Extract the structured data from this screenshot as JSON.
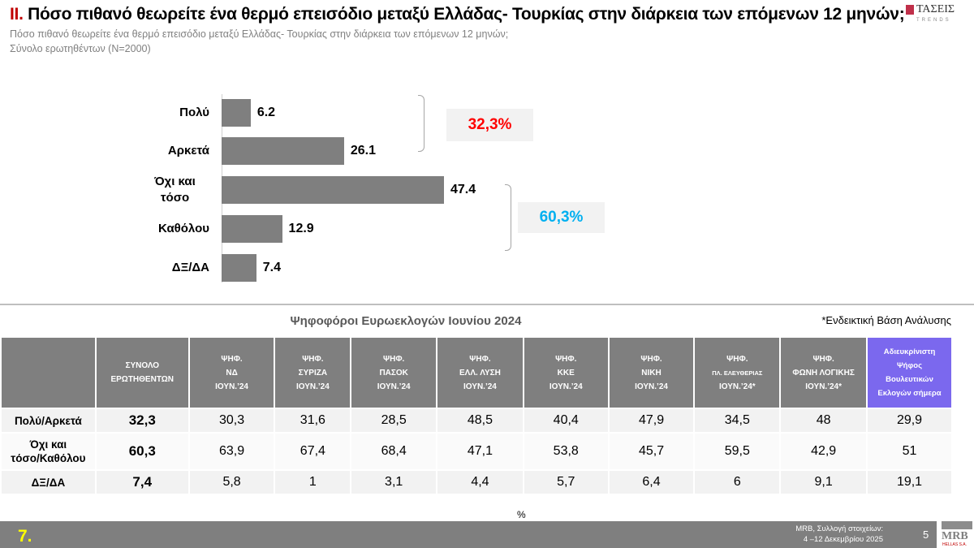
{
  "header": {
    "title_number": "ΙΙ.",
    "title": "Πόσο πιθανό θεωρείτε ένα θερμό επεισόδιο μεταξύ Ελλάδας- Τουρκίας στην διάρκεια των επόμενων 12 μηνών;",
    "subtitle": "Πόσο πιθανό θεωρείτε ένα θερμό επεισόδιο μεταξύ Ελλάδας- Τουρκίας στην διάρκεια των επόμενων 12 μηνών;",
    "base": "Σύνολο ερωτηθέντων (N=2000)",
    "logo_text": "ΤΑΣΕΙΣ",
    "logo_sub": "TRENDS"
  },
  "chart_data": {
    "type": "bar",
    "orientation": "horizontal",
    "categories": [
      "Πολύ",
      "Αρκετά",
      "Όχι και τόσο",
      "Καθόλου",
      "ΔΞ/ΔΑ"
    ],
    "values": [
      6.2,
      26.1,
      47.4,
      12.9,
      7.4
    ],
    "value_labels": [
      "6.2",
      "26.1",
      "47.4",
      "12.9",
      "7.4"
    ],
    "bar_color": "#7f7f7f",
    "groups": [
      {
        "label": "32,3%",
        "color": "#ff0000",
        "members": [
          "Πολύ",
          "Αρκετά"
        ]
      },
      {
        "label": "60,3%",
        "color": "#00b0f0",
        "members": [
          "Όχι και τόσο",
          "Καθόλου"
        ]
      }
    ]
  },
  "table": {
    "title": "Ψηφοφόροι Ευρωεκλογών Ιουνίου 2024",
    "note": "*Ενδεικτική Βάση Ανάλυσης",
    "headers": [
      [
        "ΣΥΝΟΛΟ",
        "ΕΡΩΤΗΘΕΝΤΩΝ"
      ],
      [
        "ΨΗΦ.",
        "ΝΔ",
        "ΙΟΥΝ.’24"
      ],
      [
        "ΨΗΦ.",
        "ΣΥΡΙΖΑ",
        "ΙΟΥΝ.’24"
      ],
      [
        "ΨΗΦ.",
        "ΠΑΣΟΚ",
        "ΙΟΥΝ.’24"
      ],
      [
        "ΨΗΦ.",
        "ΕΛΛ. ΛΥΣΗ",
        "ΙΟΥΝ.’24"
      ],
      [
        "ΨΗΦ.",
        "ΚΚΕ",
        "ΙΟΥΝ.’24"
      ],
      [
        "ΨΗΦ.",
        "ΝΙΚΗ",
        "ΙΟΥΝ.’24"
      ],
      [
        "ΨΗΦ.",
        "ΠΛ. ΕΛΕΥΘΕΡΙΑΣ",
        "ΙΟΥΝ.’24*"
      ],
      [
        "ΨΗΦ.",
        "ΦΩΝΗ ΛΟΓΙΚΗΣ",
        "ΙΟΥΝ.’24*"
      ],
      [
        "Αδιευκρίνιστη",
        "Ψήφος",
        "Βουλευτικών",
        "Εκλογών σήμερα"
      ]
    ],
    "highlight_color": "#7b68ee",
    "rows": [
      {
        "label": "Πολύ/Αρκετά",
        "values": [
          "32,3",
          "30,3",
          "31,6",
          "28,5",
          "48,5",
          "40,4",
          "47,9",
          "34,5",
          "48",
          "29,9"
        ]
      },
      {
        "label": "Όχι και τόσο/Καθόλου",
        "values": [
          "60,3",
          "63,9",
          "67,4",
          "68,4",
          "47,1",
          "53,8",
          "45,7",
          "59,5",
          "42,9",
          "51"
        ]
      },
      {
        "label": "ΔΞ/ΔΑ",
        "values": [
          "7,4",
          "5,8",
          "1",
          "3,1",
          "4,4",
          "5,7",
          "6,4",
          "6",
          "9,1",
          "19,1"
        ]
      }
    ]
  },
  "footer": {
    "unit": "%",
    "slide_number": "7.",
    "source_line1": "MRB, Συλλογή στοιχείων:",
    "source_line2": "4 –12 Δεκεμβρίου 2025",
    "page": "5",
    "logo_text": "MRB",
    "logo_sub": "HELLAS S.A."
  }
}
